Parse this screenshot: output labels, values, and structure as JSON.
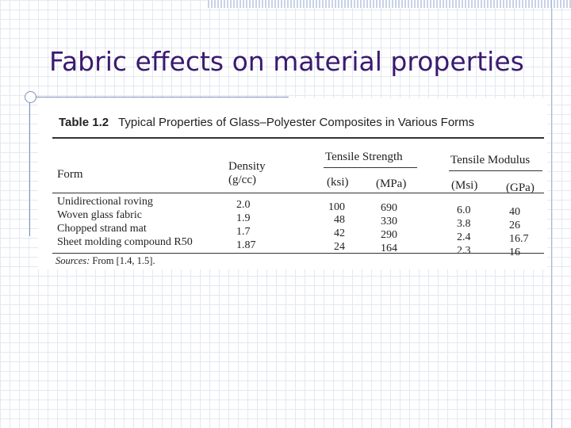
{
  "slide": {
    "title": "Fabric effects on material properties"
  },
  "table": {
    "number": "Table 1.2",
    "caption": "Typical Properties of Glass–Polyester Composites in Various Forms",
    "headers": {
      "form": "Form",
      "density": "Density",
      "density_unit": "(g/cc)",
      "tensile_strength": "Tensile Strength",
      "ts_ksi": "(ksi)",
      "ts_mpa": "(MPa)",
      "tensile_modulus": "Tensile Modulus",
      "tm_msi": "(Msi)",
      "tm_gpa": "(GPa)"
    },
    "rows": [
      {
        "form": "Unidirectional roving",
        "density": "2.0",
        "ksi": "100",
        "mpa": "690",
        "msi": "6.0",
        "gpa": "40"
      },
      {
        "form": "Woven glass fabric",
        "density": "1.9",
        "ksi": "48",
        "mpa": "330",
        "msi": "3.8",
        "gpa": "26"
      },
      {
        "form": "Chopped strand mat",
        "density": "1.7",
        "ksi": "42",
        "mpa": "290",
        "msi": "2.4",
        "gpa": "16.7"
      },
      {
        "form": "Sheet molding compound R50",
        "density": "1.87",
        "ksi": "24",
        "mpa": "164",
        "msi": "2.3",
        "gpa": "16"
      }
    ],
    "sources_label": "Sources:",
    "sources_text": "From [1.4, 1.5]."
  }
}
